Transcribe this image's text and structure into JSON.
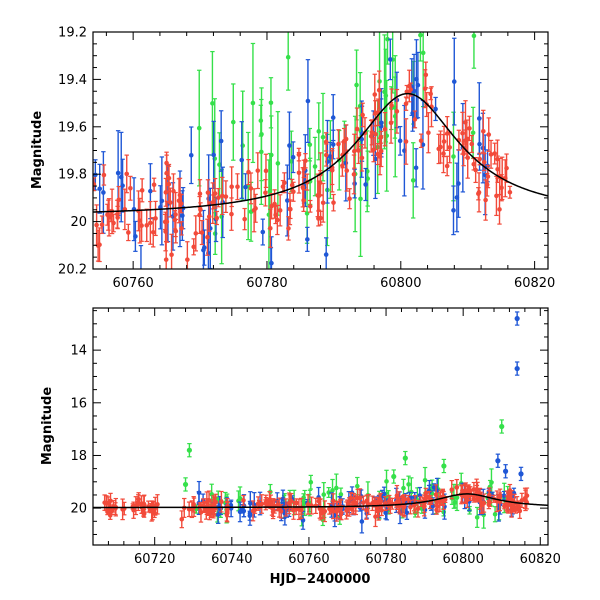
{
  "colors": {
    "red": "#f24a3a",
    "blue": "#1f57d6",
    "green": "#35e04a",
    "model": "#000000"
  },
  "chart_data": [
    {
      "type": "scatter",
      "title": "",
      "xlabel": "",
      "ylabel": "Magnitude",
      "xlim": [
        60754,
        60822
      ],
      "ylim": [
        20.2,
        19.2
      ],
      "y_inverted": true,
      "xticks": [
        "60760",
        "60780",
        "60800",
        "60820"
      ],
      "xtick_values": [
        60760,
        60780,
        60800,
        60820
      ],
      "yticks": [
        "19.2",
        "19.4",
        "19.6",
        "19.8",
        "20",
        "20.2"
      ],
      "ytick_values": [
        19.2,
        19.4,
        19.6,
        19.8,
        20.0,
        20.2
      ],
      "grid": false,
      "model_curve": {
        "type": "line",
        "color": "#000000",
        "peak_x": 60801,
        "peak_y": 19.46,
        "baseline_y": 19.98,
        "width": 9.5
      },
      "series": [
        {
          "color": "#f24a3a",
          "trend": [
            [
              60754,
              19.94
            ],
            [
              60770,
              19.95
            ],
            [
              60780,
              19.9
            ],
            [
              60790,
              19.8
            ],
            [
              60796,
              19.64
            ],
            [
              60800,
              19.48
            ],
            [
              60804,
              19.53
            ],
            [
              60808,
              19.65
            ],
            [
              60812,
              19.78
            ],
            [
              60817,
              19.87
            ]
          ],
          "x_range": [
            60754,
            60817
          ],
          "n_points": 190,
          "scatter": 0.08,
          "error": 0.06
        },
        {
          "color": "#1f57d6",
          "trend": [
            [
              60754,
              19.95
            ],
            [
              60770,
              19.92
            ],
            [
              60780,
              19.88
            ],
            [
              60790,
              19.8
            ],
            [
              60796,
              19.62
            ],
            [
              60800,
              19.52
            ],
            [
              60804,
              19.55
            ],
            [
              60808,
              19.72
            ],
            [
              60814,
              19.85
            ]
          ],
          "x_range": [
            60754,
            60814
          ],
          "n_points": 75,
          "scatter": 0.14,
          "error": 0.12
        },
        {
          "color": "#35e04a",
          "trend": [
            [
              60754,
              19.9
            ],
            [
              60770,
              19.8
            ],
            [
              60780,
              19.75
            ],
            [
              60790,
              19.72
            ],
            [
              60796,
              19.62
            ],
            [
              60800,
              19.5
            ],
            [
              60806,
              19.5
            ],
            [
              60812,
              19.65
            ]
          ],
          "x_range": [
            60768,
            60812
          ],
          "n_points": 55,
          "scatter": 0.18,
          "error": 0.16
        }
      ]
    },
    {
      "type": "scatter",
      "title": "",
      "xlabel": "HJD−2400000",
      "ylabel": "Magnitude",
      "xlim": [
        60704,
        60822
      ],
      "ylim": [
        21.4,
        12.4
      ],
      "y_inverted": true,
      "xticks": [
        "60720",
        "60740",
        "60760",
        "60780",
        "60800",
        "60820"
      ],
      "xtick_values": [
        60720,
        60740,
        60760,
        60780,
        60800,
        60820
      ],
      "yticks": [
        "14",
        "16",
        "18",
        "20"
      ],
      "ytick_values": [
        14,
        16,
        18,
        20
      ],
      "grid": false,
      "model_curve": {
        "type": "line",
        "color": "#000000",
        "peak_x": 60801,
        "peak_y": 19.46,
        "baseline_y": 19.98,
        "width": 9.5
      },
      "series": [
        {
          "color": "#f24a3a",
          "trend": [
            [
              60707,
              19.95
            ],
            [
              60717,
              19.98
            ],
            [
              60727,
              19.95
            ],
            [
              60760,
              19.97
            ],
            [
              60780,
              19.9
            ],
            [
              60790,
              19.8
            ],
            [
              60800,
              19.5
            ],
            [
              60810,
              19.7
            ],
            [
              60817,
              19.85
            ]
          ],
          "x_range": [
            60707,
            60817
          ],
          "n_points": 260,
          "scatter": 0.15,
          "error": 0.25,
          "gap": [
            60721,
            60727
          ]
        },
        {
          "color": "#1f57d6",
          "trend": [
            [
              60730,
              19.95
            ],
            [
              60760,
              19.95
            ],
            [
              60780,
              19.85
            ],
            [
              60800,
              19.55
            ],
            [
              60810,
              19.7
            ],
            [
              60815,
              19.85
            ]
          ],
          "x_range": [
            60730,
            60815
          ],
          "n_points": 90,
          "scatter": 0.25,
          "error": 0.3,
          "outliers": [
            [
              60814,
              12.8
            ],
            [
              60814,
              14.7
            ],
            [
              60815,
              18.7
            ],
            [
              60809,
              18.2
            ],
            [
              60811,
              18.6
            ]
          ]
        },
        {
          "color": "#35e04a",
          "trend": [
            [
              60727,
              19.8
            ],
            [
              60760,
              19.75
            ],
            [
              60780,
              19.6
            ],
            [
              60800,
              19.6
            ],
            [
              60812,
              19.7
            ]
          ],
          "x_range": [
            60727,
            60812
          ],
          "n_points": 70,
          "scatter": 0.4,
          "error": 0.35,
          "outliers": [
            [
              60729,
              17.8
            ],
            [
              60728,
              19.1
            ],
            [
              60785,
              18.1
            ],
            [
              60795,
              18.4
            ],
            [
              60810,
              16.9
            ],
            [
              60807,
              19.2
            ],
            [
              60782,
              18.8
            ]
          ]
        }
      ]
    }
  ]
}
